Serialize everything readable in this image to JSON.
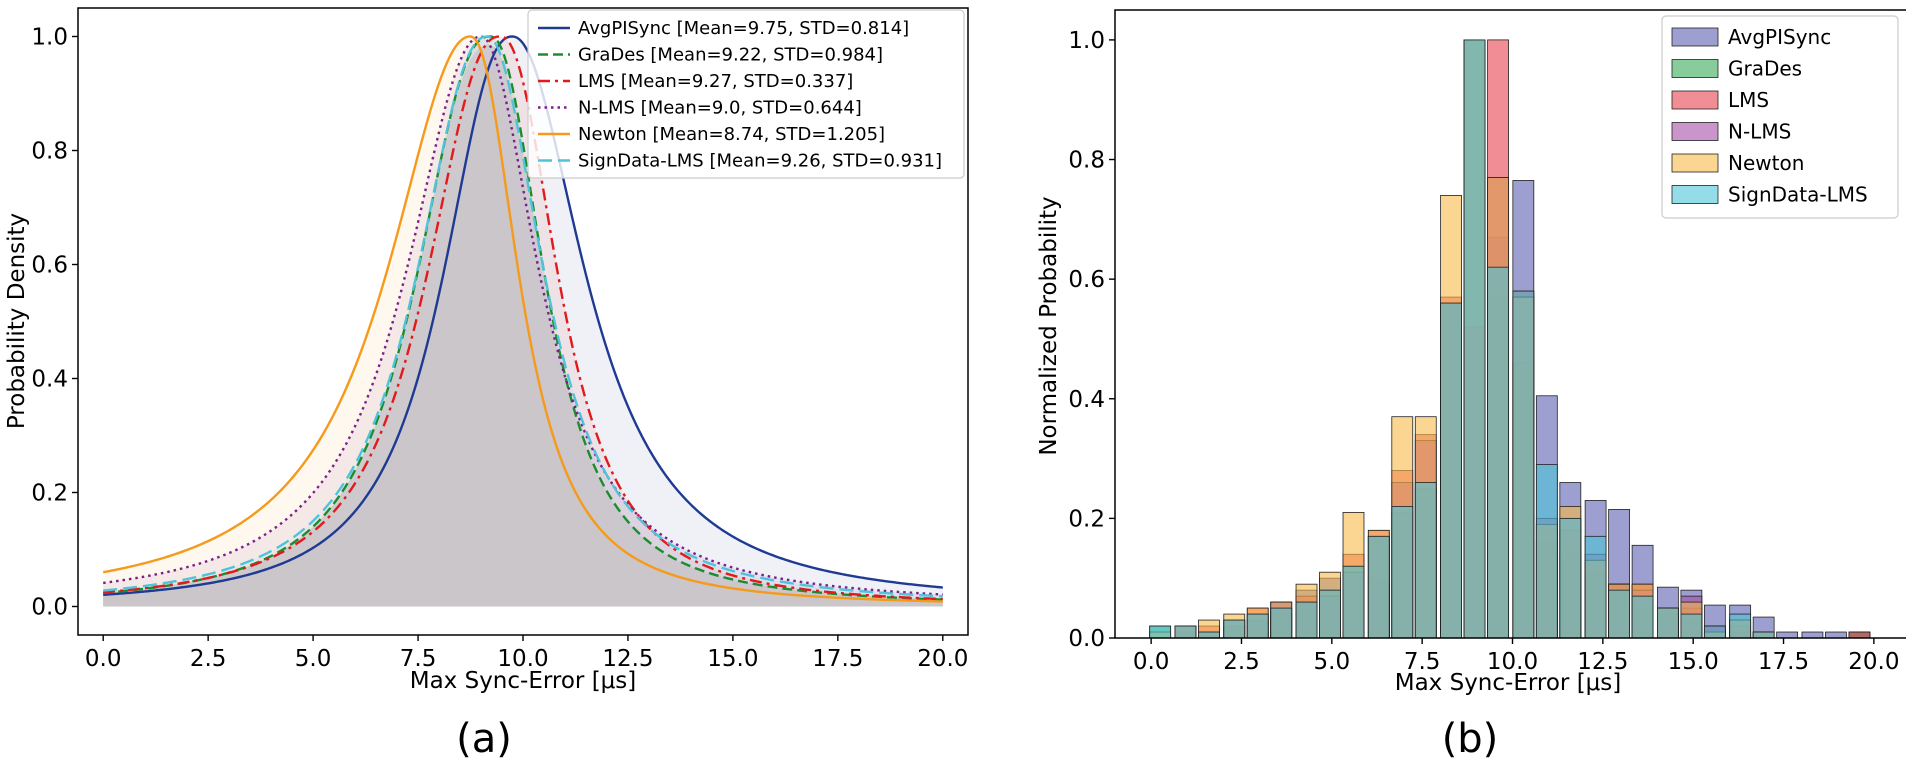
{
  "chart_data": [
    {
      "type": "line",
      "panel": "(a)",
      "title": "",
      "xlabel": "Max Sync-Error [μs]",
      "ylabel": "Probability Density",
      "xlim": [
        -0.6,
        20.6
      ],
      "ylim": [
        -0.05,
        1.05
      ],
      "xticks": [
        "0.0",
        "2.5",
        "5.0",
        "7.5",
        "10.0",
        "12.5",
        "15.0",
        "17.5",
        "20.0"
      ],
      "yticks": [
        "0.0",
        "0.2",
        "0.4",
        "0.6",
        "0.8",
        "1.0"
      ],
      "legend_position": "top-right",
      "series": [
        {
          "name": "AvgPISync",
          "label": "AvgPISync [Mean=9.75, STD=0.814]",
          "color": "#1f3a93",
          "dash": "solid",
          "peak": 9.75,
          "left_width": 1.9,
          "right_width": 2.05,
          "left_power": 1.75,
          "right_power": 1.55
        },
        {
          "name": "GraDes",
          "label": "GraDes [Mean=9.22, STD=0.984]",
          "color": "#1e8c2e",
          "dash": "dashed",
          "peak": 9.22,
          "left_width": 2.0,
          "right_width": 1.5,
          "left_power": 1.8,
          "right_power": 1.65
        },
        {
          "name": "LMS",
          "label": "LMS [Mean=9.27, STD=0.337]",
          "color": "#e31a1c",
          "dash": "dashdot",
          "peak": 9.45,
          "left_width": 2.0,
          "right_width": 1.6,
          "left_power": 1.75,
          "right_power": 1.7
        },
        {
          "name": "N-LMS",
          "label": "N-LMS [Mean=9.0, STD=0.644]",
          "color": "#7b1f8c",
          "dash": "dotted",
          "peak": 9.0,
          "left_width": 2.1,
          "right_width": 1.65,
          "left_power": 1.6,
          "right_power": 1.5
        },
        {
          "name": "Newton",
          "label": "Newton [Mean=8.74, STD=1.205]",
          "color": "#f59a1b",
          "dash": "solid",
          "peak": 8.74,
          "left_width": 2.35,
          "right_width": 1.35,
          "left_power": 1.55,
          "right_power": 1.65
        },
        {
          "name": "SignData-LMS",
          "label": "SignData-LMS [Mean=9.26, STD=0.931]",
          "color": "#4fc3d9",
          "dash": "longdash",
          "peak": 9.15,
          "left_width": 1.95,
          "right_width": 1.6,
          "left_power": 1.7,
          "right_power": 1.55
        }
      ],
      "fill_color": "#c9c6cb"
    },
    {
      "type": "bar",
      "panel": "(b)",
      "title": "",
      "xlabel": "Max Sync-Error [μs]",
      "ylabel": "Normalized Probability",
      "xlim": [
        -1.0,
        21.0
      ],
      "ylim": [
        0.0,
        1.05
      ],
      "xticks": [
        "0.0",
        "2.5",
        "5.0",
        "7.5",
        "10.0",
        "12.5",
        "15.0",
        "17.5",
        "20.0"
      ],
      "yticks": [
        "0.0",
        "0.2",
        "0.4",
        "0.6",
        "0.8",
        "1.0"
      ],
      "legend_position": "top-right",
      "bin_centers": [
        0.25,
        0.95,
        1.6,
        2.3,
        2.95,
        3.6,
        4.3,
        4.95,
        5.6,
        6.3,
        6.95,
        7.6,
        8.3,
        8.95,
        9.6,
        10.3,
        10.95,
        11.6,
        12.3,
        12.95,
        13.6,
        14.3,
        14.95,
        15.6,
        16.3,
        16.95,
        17.6,
        18.3,
        18.95,
        19.6
      ],
      "bar_width": 0.58,
      "series": [
        {
          "name": "AvgPISync",
          "color": "#5a5fb0",
          "values": [
            0.0,
            0.0,
            0.0,
            0.0,
            0.0,
            0.06,
            0.08,
            0.1,
            0.0,
            0.1,
            0.0,
            0.0,
            0.0,
            0.0,
            0.67,
            0.765,
            0.405,
            0.26,
            0.23,
            0.215,
            0.155,
            0.085,
            0.08,
            0.055,
            0.055,
            0.035,
            0.01,
            0.01,
            0.01,
            0.01
          ]
        },
        {
          "name": "GraDes",
          "color": "#3aaa5a",
          "values": [
            0.02,
            0.01,
            0.01,
            0.02,
            0.03,
            0.04,
            0.06,
            0.07,
            0.12,
            0.17,
            0.21,
            0.25,
            0.56,
            1.0,
            0.57,
            0.46,
            0.16,
            0.14,
            0.11,
            0.09,
            0.05,
            0.04,
            0.03,
            0.01,
            0.01,
            0.0,
            0.0,
            0.0,
            0.0,
            0.01
          ]
        },
        {
          "name": "LMS",
          "color": "#e8434f",
          "values": [
            0.0,
            0.02,
            0.02,
            0.03,
            0.05,
            0.05,
            0.07,
            0.08,
            0.14,
            0.18,
            0.28,
            0.34,
            0.57,
            0.52,
            1.0,
            0.58,
            0.19,
            0.18,
            0.13,
            0.09,
            0.09,
            0.05,
            0.05,
            0.02,
            0.02,
            0.01,
            0.0,
            0.0,
            0.0,
            0.01
          ]
        },
        {
          "name": "N-LMS",
          "color": "#a64ea6",
          "values": [
            0.0,
            0.02,
            0.01,
            0.03,
            0.04,
            0.06,
            0.06,
            0.07,
            0.11,
            0.17,
            0.26,
            0.33,
            0.56,
            1.0,
            0.77,
            0.57,
            0.2,
            0.2,
            0.14,
            0.09,
            0.08,
            0.05,
            0.07,
            0.02,
            0.03,
            0.01,
            0.0,
            0.0,
            0.0,
            0.0
          ]
        },
        {
          "name": "Newton",
          "color": "#f8b94a",
          "values": [
            0.01,
            0.02,
            0.03,
            0.04,
            0.05,
            0.06,
            0.09,
            0.11,
            0.21,
            0.18,
            0.37,
            0.37,
            0.74,
            1.0,
            0.77,
            0.57,
            0.19,
            0.22,
            0.13,
            0.09,
            0.09,
            0.05,
            0.06,
            0.01,
            0.03,
            0.01,
            0.0,
            0.0,
            0.0,
            0.0
          ]
        },
        {
          "name": "SignData-LMS",
          "color": "#4cc4d9",
          "values": [
            0.02,
            0.02,
            0.01,
            0.03,
            0.04,
            0.05,
            0.06,
            0.08,
            0.12,
            0.17,
            0.22,
            0.26,
            0.56,
            1.0,
            0.62,
            0.58,
            0.29,
            0.2,
            0.17,
            0.08,
            0.07,
            0.05,
            0.04,
            0.02,
            0.04,
            0.01,
            0.0,
            0.0,
            0.0,
            0.0
          ]
        }
      ]
    }
  ],
  "captions": {
    "a": "(a)",
    "b": "(b)"
  }
}
